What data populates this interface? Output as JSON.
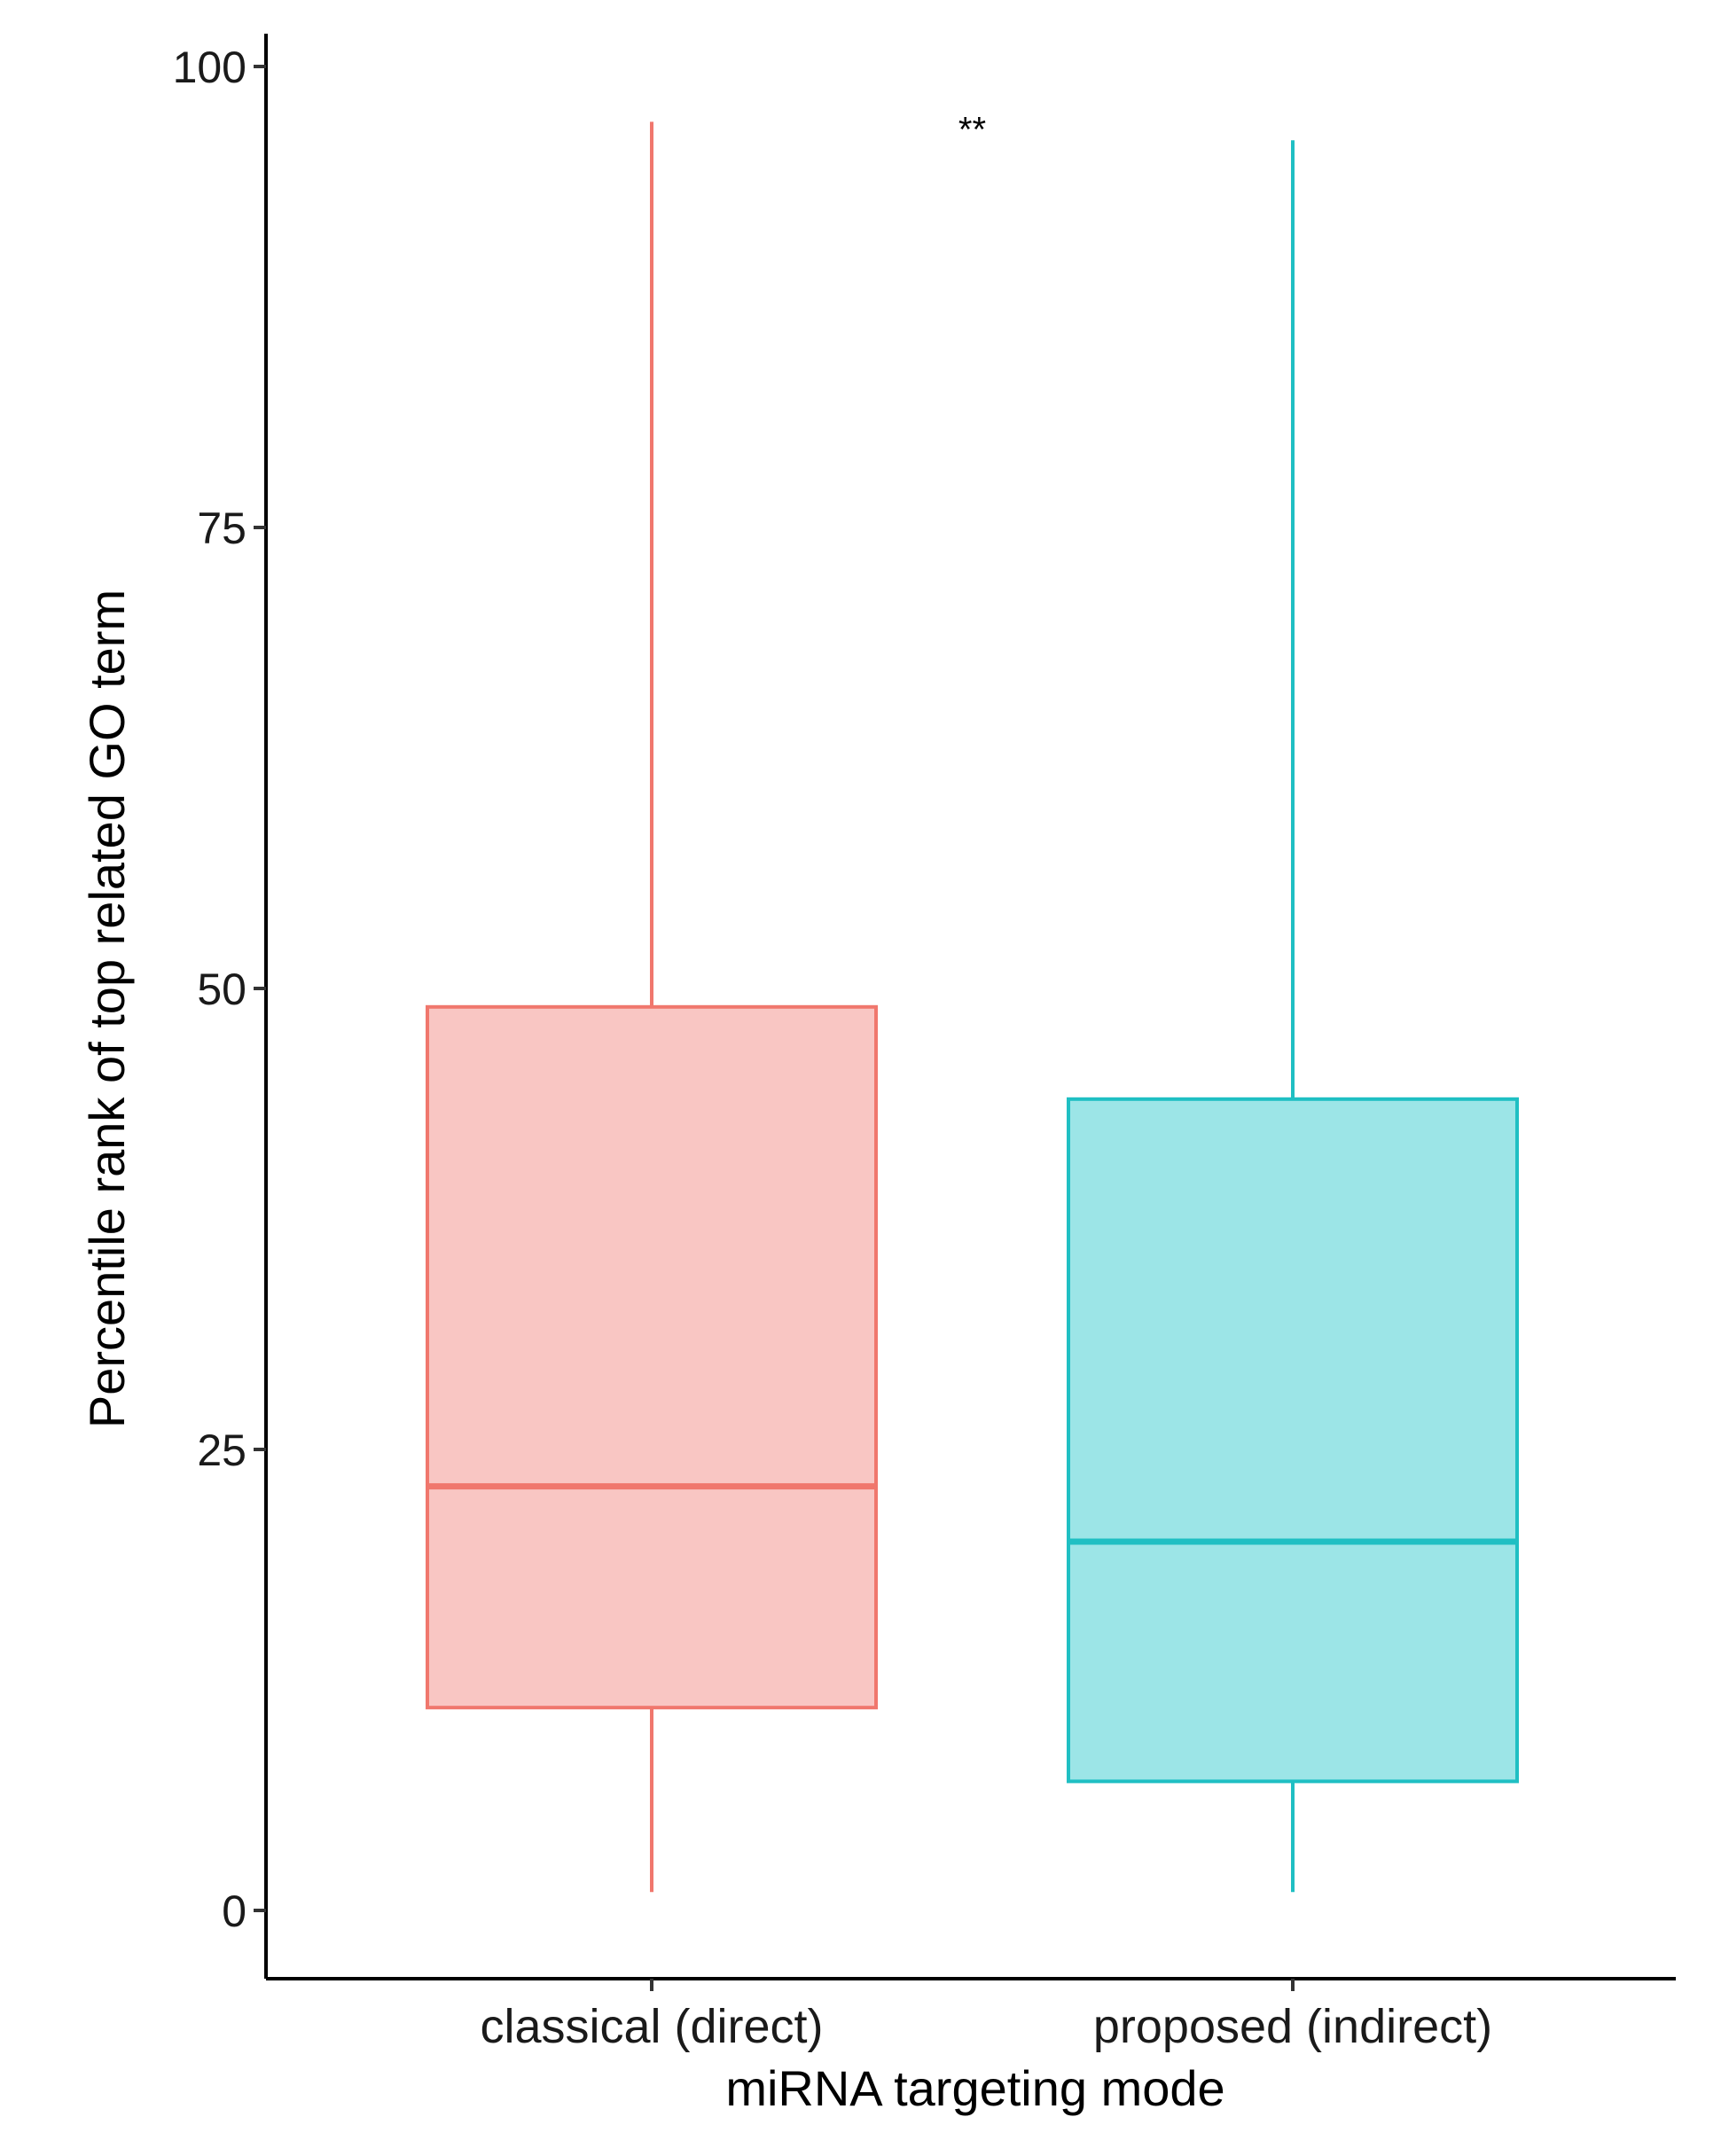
{
  "chart_data": {
    "type": "box",
    "title": "",
    "xlabel": "miRNA targeting mode",
    "ylabel": "Percentile rank of top related GO term",
    "ylim": [
      0,
      100
    ],
    "yticks": [
      0,
      25,
      50,
      75,
      100
    ],
    "grid": false,
    "legend": "none",
    "categories": [
      "classical (direct)",
      "proposed (indirect)"
    ],
    "series": [
      {
        "name": "classical (direct)",
        "whisker_low": 1,
        "q1": 11,
        "median": 23,
        "q3": 49,
        "whisker_high": 97,
        "stroke": "#f0776d",
        "fill": "#f9c6c3"
      },
      {
        "name": "proposed (indirect)",
        "whisker_low": 1,
        "q1": 7,
        "median": 20,
        "q3": 44,
        "whisker_high": 96,
        "stroke": "#1fbfc3",
        "fill": "#9ce5e7"
      }
    ],
    "annotations": [
      {
        "text": "**",
        "x_between": [
          "classical (direct)",
          "proposed (indirect)"
        ],
        "y": 97
      }
    ]
  }
}
